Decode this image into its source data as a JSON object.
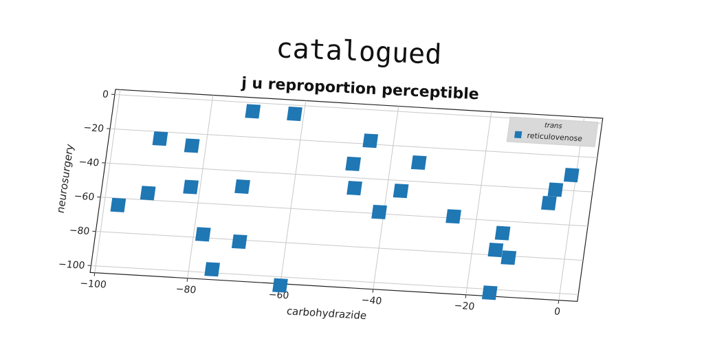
{
  "chart_data": {
    "type": "scatter",
    "title": "catalogued",
    "subtitle": "j u reproportion perceptible",
    "xlabel": "carbohydrazide",
    "ylabel": "neurosurgery",
    "xlim": [
      -101,
      4
    ],
    "ylim": [
      -104,
      3
    ],
    "xticks": [
      -100,
      -80,
      -60,
      -40,
      -20,
      0
    ],
    "yticks": [
      0,
      -20,
      -40,
      -60,
      -80,
      -100
    ],
    "grid": true,
    "legend": {
      "title": "trans",
      "placement": "top-right"
    },
    "series": [
      {
        "name": "reticulovenose",
        "color": "#1f77b4",
        "marker": "square",
        "x": [
          -71,
          -62,
          -45,
          -48,
          -34,
          -90,
          -83,
          -47,
          -37,
          -41,
          -25,
          -82,
          -71,
          -97,
          -91,
          -15,
          -14,
          -12,
          -78,
          -70,
          -75,
          -60,
          -15,
          -1,
          -4,
          -5
        ],
        "y": [
          -5,
          -5,
          -18,
          -32,
          -29,
          -24,
          -27,
          -46,
          -46,
          -59,
          -59,
          -51,
          -49,
          -64,
          -56,
          -77,
          -67,
          -81,
          -78,
          -81,
          -98,
          -105,
          -102,
          -31,
          -40,
          -48
        ]
      }
    ]
  }
}
